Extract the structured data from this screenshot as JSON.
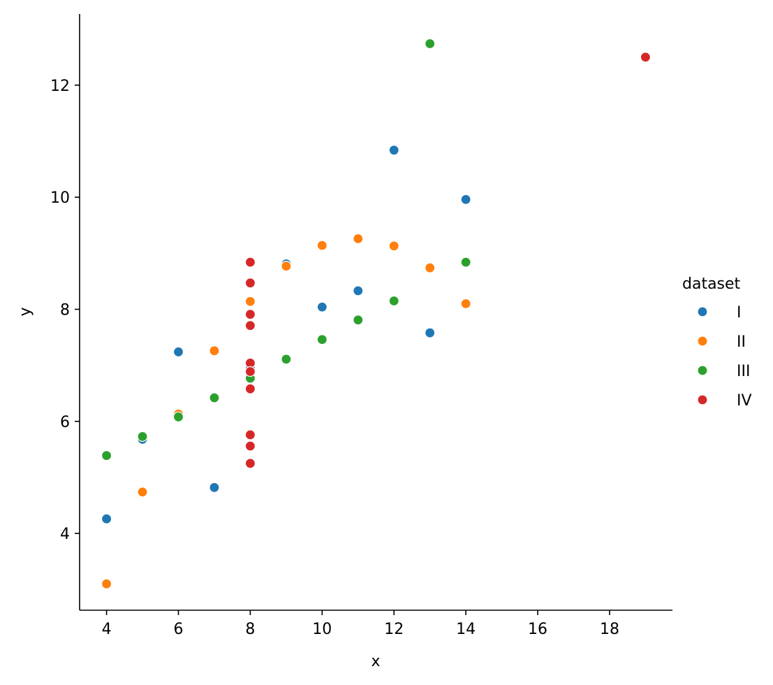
{
  "chart_data": {
    "type": "scatter",
    "title": "",
    "xlabel": "x",
    "ylabel": "y",
    "xlim": [
      3.25,
      19.75
    ],
    "ylim": [
      2.63,
      13.27
    ],
    "xticks": [
      4,
      6,
      8,
      10,
      12,
      14,
      16,
      18
    ],
    "yticks": [
      4,
      6,
      8,
      10,
      12
    ],
    "grid": false,
    "legend": {
      "title": "dataset",
      "placement": "right"
    },
    "series": [
      {
        "name": "I",
        "color": "#1f77b4",
        "points": [
          {
            "x": 10,
            "y": 8.04
          },
          {
            "x": 8,
            "y": 6.95
          },
          {
            "x": 13,
            "y": 7.58
          },
          {
            "x": 9,
            "y": 8.81
          },
          {
            "x": 11,
            "y": 8.33
          },
          {
            "x": 14,
            "y": 9.96
          },
          {
            "x": 6,
            "y": 7.24
          },
          {
            "x": 4,
            "y": 4.26
          },
          {
            "x": 12,
            "y": 10.84
          },
          {
            "x": 7,
            "y": 4.82
          },
          {
            "x": 5,
            "y": 5.68
          }
        ]
      },
      {
        "name": "II",
        "color": "#ff7f0e",
        "points": [
          {
            "x": 10,
            "y": 9.14
          },
          {
            "x": 8,
            "y": 8.14
          },
          {
            "x": 13,
            "y": 8.74
          },
          {
            "x": 9,
            "y": 8.77
          },
          {
            "x": 11,
            "y": 9.26
          },
          {
            "x": 14,
            "y": 8.1
          },
          {
            "x": 6,
            "y": 6.13
          },
          {
            "x": 4,
            "y": 3.1
          },
          {
            "x": 12,
            "y": 9.13
          },
          {
            "x": 7,
            "y": 7.26
          },
          {
            "x": 5,
            "y": 4.74
          }
        ]
      },
      {
        "name": "III",
        "color": "#2ca02c",
        "points": [
          {
            "x": 10,
            "y": 7.46
          },
          {
            "x": 8,
            "y": 6.77
          },
          {
            "x": 13,
            "y": 12.74
          },
          {
            "x": 9,
            "y": 7.11
          },
          {
            "x": 11,
            "y": 7.81
          },
          {
            "x": 14,
            "y": 8.84
          },
          {
            "x": 6,
            "y": 6.08
          },
          {
            "x": 4,
            "y": 5.39
          },
          {
            "x": 12,
            "y": 8.15
          },
          {
            "x": 7,
            "y": 6.42
          },
          {
            "x": 5,
            "y": 5.73
          }
        ]
      },
      {
        "name": "IV",
        "color": "#d62728",
        "points": [
          {
            "x": 8,
            "y": 6.58
          },
          {
            "x": 8,
            "y": 5.76
          },
          {
            "x": 8,
            "y": 7.71
          },
          {
            "x": 8,
            "y": 8.84
          },
          {
            "x": 8,
            "y": 8.47
          },
          {
            "x": 8,
            "y": 7.04
          },
          {
            "x": 8,
            "y": 5.25
          },
          {
            "x": 19,
            "y": 12.5
          },
          {
            "x": 8,
            "y": 5.56
          },
          {
            "x": 8,
            "y": 7.91
          },
          {
            "x": 8,
            "y": 6.89
          }
        ]
      }
    ]
  }
}
